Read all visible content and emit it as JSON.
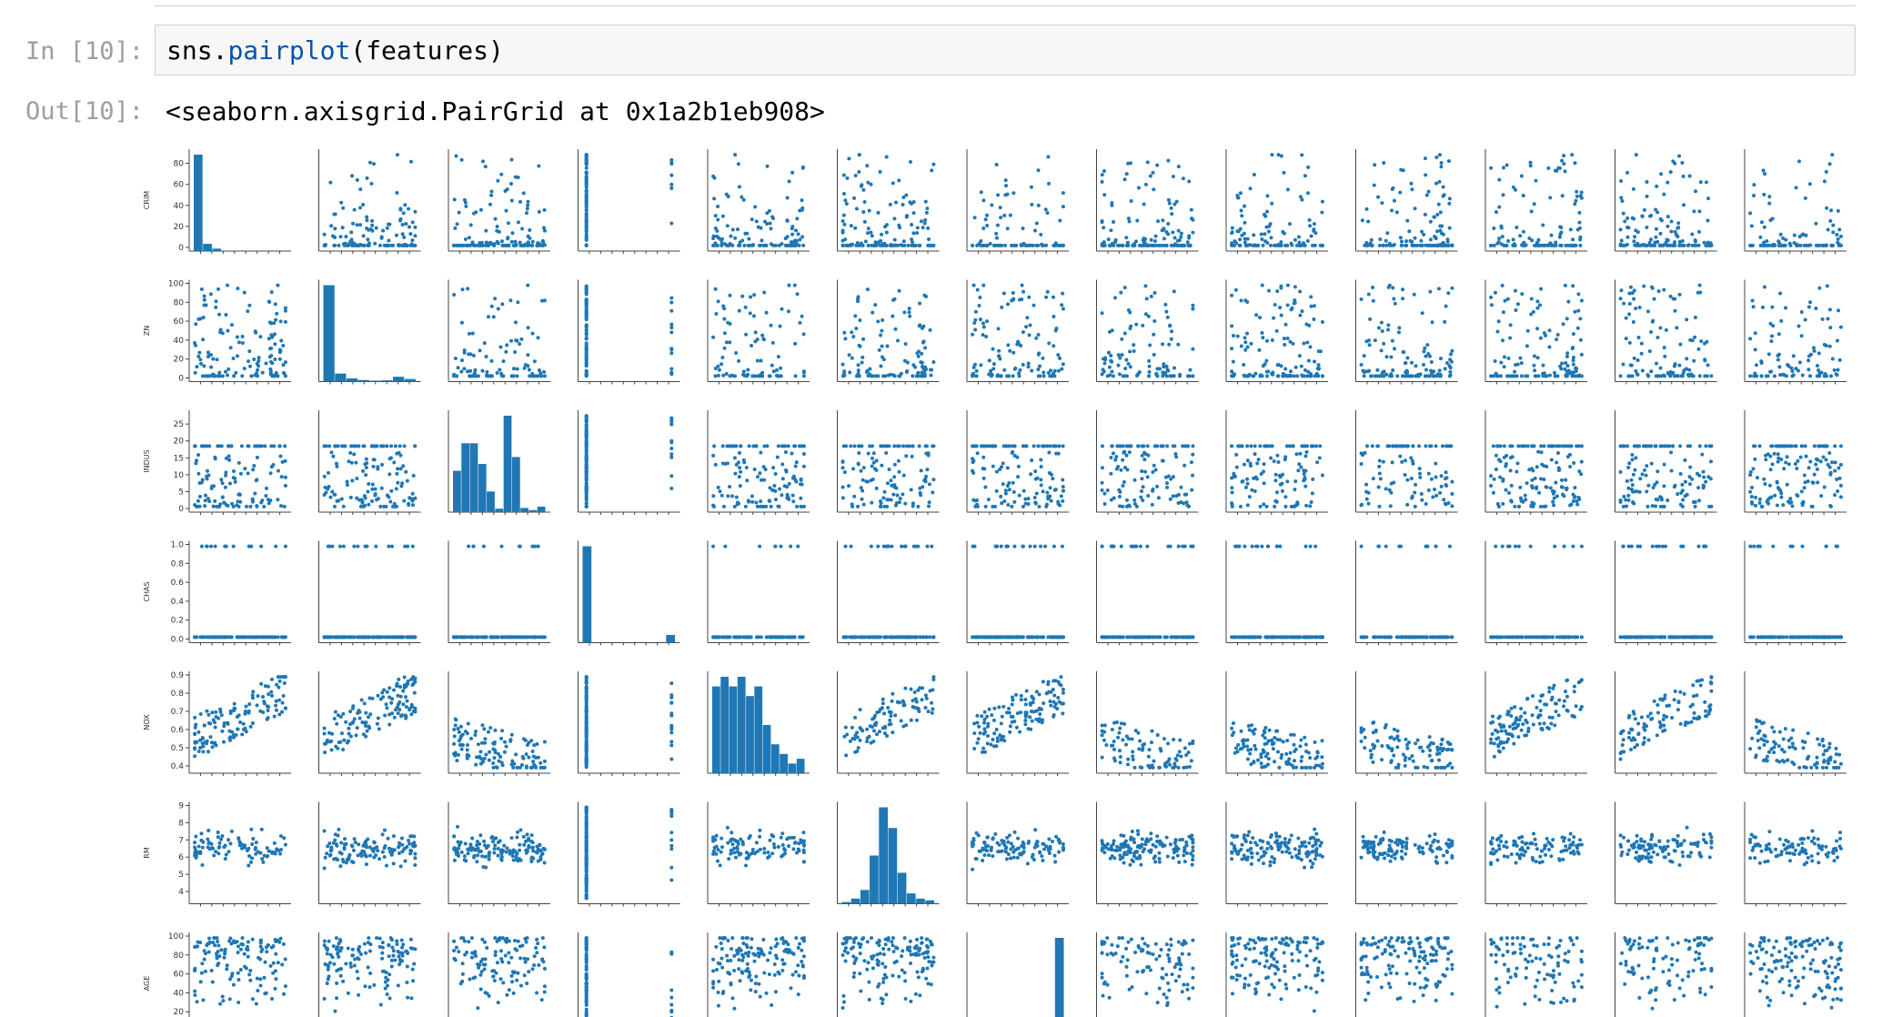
{
  "notebook": {
    "input": {
      "prompt": "In [10]:",
      "code_prefix": "sns.",
      "code_function": "pairplot",
      "code_suffix": "(features)"
    },
    "output": {
      "prompt": "Out[10]:",
      "text": "<seaborn.axisgrid.PairGrid at 0x1a2b1eb908>"
    }
  },
  "colors": {
    "point": "#1f77b4",
    "bar": "#1f77b4",
    "axis": "#444444"
  },
  "chart_data": {
    "type": "scatter",
    "title": "",
    "grid": false,
    "variables_shown": [
      "CRIM",
      "ZN",
      "INDUS",
      "CHAS",
      "NOX",
      "RM",
      "AGE"
    ],
    "columns_count": 13,
    "rows": [
      {
        "label": "CRIM",
        "ticks": [
          "0",
          "20",
          "40",
          "60",
          "80"
        ],
        "ylim": [
          0,
          90
        ]
      },
      {
        "label": "ZN",
        "ticks": [
          "0",
          "20",
          "40",
          "60",
          "80",
          "100"
        ],
        "ylim": [
          0,
          100
        ]
      },
      {
        "label": "INDUS",
        "ticks": [
          "0",
          "5",
          "10",
          "15",
          "20",
          "25"
        ],
        "ylim": [
          0,
          28
        ]
      },
      {
        "label": "CHAS",
        "ticks": [
          "0.0",
          "0.2",
          "0.4",
          "0.6",
          "0.8",
          "1.0"
        ],
        "ylim": [
          0,
          1
        ]
      },
      {
        "label": "NOX",
        "ticks": [
          "0.4",
          "0.5",
          "0.6",
          "0.7",
          "0.8",
          "0.9"
        ],
        "ylim": [
          0.38,
          0.9
        ]
      },
      {
        "label": "RM",
        "ticks": [
          "4",
          "5",
          "6",
          "7",
          "8",
          "9"
        ],
        "ylim": [
          3.5,
          9
        ]
      },
      {
        "label": "AGE",
        "ticks": [
          "20",
          "40",
          "60",
          "80",
          "100"
        ],
        "ylim": [
          0,
          100
        ]
      }
    ],
    "diagonal_histograms": [
      [
        40,
        3,
        1,
        0.2,
        0.1,
        0,
        0,
        0,
        0,
        0
      ],
      [
        30,
        2.5,
        1.0,
        0.5,
        0.3,
        0.4,
        1.5,
        0.8
      ],
      [
        6,
        10,
        10,
        7,
        3,
        0.5,
        14,
        8,
        0.6,
        0.3,
        0.8
      ],
      [
        50,
        0,
        0,
        0,
        0,
        0,
        0,
        0,
        0,
        4
      ],
      [
        9,
        10,
        9,
        10,
        8,
        9,
        5,
        3,
        2,
        1,
        1.5
      ],
      [
        0.5,
        1.5,
        4,
        14,
        28,
        22,
        9,
        3,
        1.5,
        1
      ],
      [
        0,
        0,
        0,
        0,
        0,
        0,
        0,
        0,
        0,
        6
      ]
    ]
  }
}
